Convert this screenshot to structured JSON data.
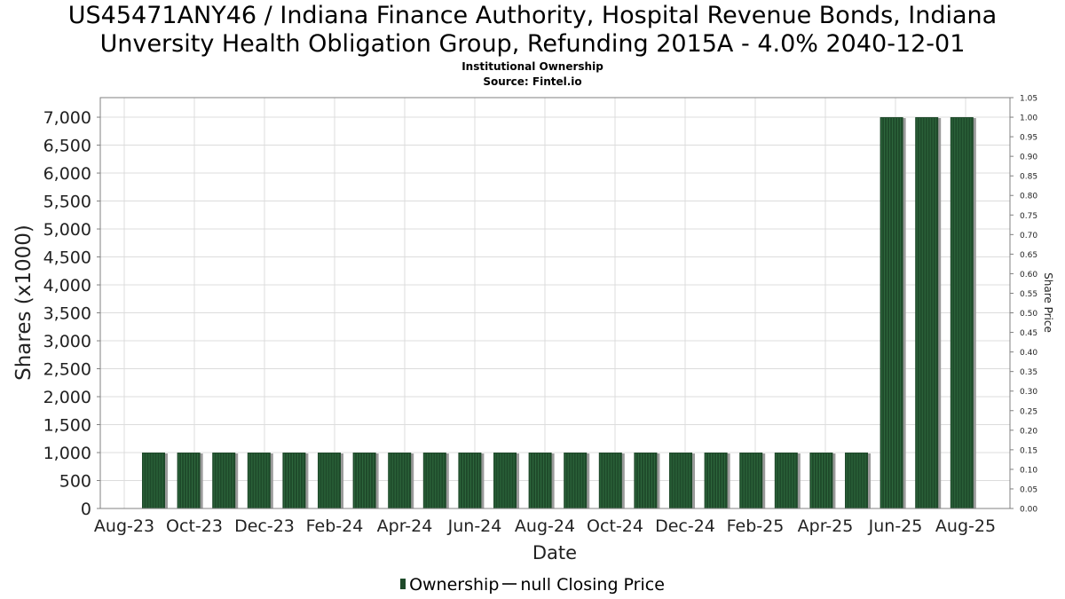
{
  "header": {
    "title_line1": "US45471ANY46 / Indiana Finance Authority, Hospital Revenue Bonds, Indiana",
    "title_line2": "Unversity Health Obligation Group, Refunding 2015A - 4.0% 2040-12-01",
    "subtitle_line1": "Institutional Ownership",
    "subtitle_line2": "Source: Fintel.io"
  },
  "legend": {
    "ownership": "Ownership",
    "closing": "null Closing Price"
  },
  "colors": {
    "bar": "#1e4a2a",
    "bar_stripe": "#2f6a3e",
    "bar_shadow": "#9a9a9a",
    "grid": "#dcdcdc"
  },
  "chart_data": {
    "type": "bar",
    "xlabel": "Date",
    "ylabel": "Shares (x1000)",
    "y2label": "Share Price",
    "ylim": [
      0,
      7350
    ],
    "y2lim": [
      0,
      1.05
    ],
    "yticks": [
      0,
      500,
      1000,
      1500,
      2000,
      2500,
      3000,
      3500,
      4000,
      4500,
      5000,
      5500,
      6000,
      6500,
      7000
    ],
    "yticklabels": [
      "0",
      "500",
      "1,000",
      "1,500",
      "2,000",
      "2,500",
      "3,000",
      "3,500",
      "4,000",
      "4,500",
      "5,000",
      "5,500",
      "6,000",
      "6,500",
      "7,000"
    ],
    "y2ticklabels": [
      "0.00",
      "0.05",
      "0.10",
      "0.15",
      "0.20",
      "0.25",
      "0.30",
      "0.35",
      "0.40",
      "0.45",
      "0.50",
      "0.55",
      "0.60",
      "0.65",
      "0.70",
      "0.75",
      "0.80",
      "0.85",
      "0.90",
      "0.95",
      "1.00",
      "1.05"
    ],
    "xticklabels": [
      "Aug-23",
      "Oct-23",
      "Dec-23",
      "Feb-24",
      "Apr-24",
      "Jun-24",
      "Aug-24",
      "Oct-24",
      "Dec-24",
      "Feb-25",
      "Apr-25",
      "Jun-25",
      "Aug-25"
    ],
    "categories": [
      "Sep-23",
      "Oct-23",
      "Nov-23",
      "Dec-23",
      "Jan-24",
      "Feb-24",
      "Mar-24",
      "Apr-24",
      "May-24",
      "Jun-24",
      "Jul-24",
      "Aug-24",
      "Sep-24",
      "Oct-24",
      "Nov-24",
      "Dec-24",
      "Jan-25",
      "Feb-25",
      "Mar-25",
      "Apr-25",
      "May-25",
      "Jun-25",
      "Jul-25",
      "Aug-25"
    ],
    "series": [
      {
        "name": "Ownership",
        "values": [
          1000,
          1000,
          1000,
          1000,
          1000,
          1000,
          1000,
          1000,
          1000,
          1000,
          1000,
          1000,
          1000,
          1000,
          1000,
          1000,
          1000,
          1000,
          1000,
          1000,
          1000,
          7000,
          7000,
          7000
        ]
      }
    ],
    "grid": true,
    "legend_position": "bottom"
  }
}
